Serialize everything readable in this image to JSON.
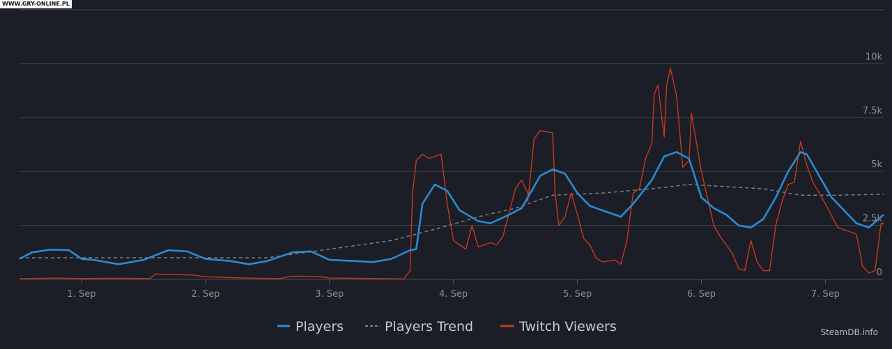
{
  "watermark": "WWW.GRY-ONLINE.PL",
  "credit": "SteamDB.info",
  "colors": {
    "players": "#2a8bd4",
    "trend": "#7a7f87",
    "twitch": "#c8381c",
    "grid": "#3b3f48",
    "text": "#8a8f98"
  },
  "chart_data": {
    "type": "line",
    "title": "",
    "xlabel": "",
    "ylabel": "",
    "xlim": [
      0.5,
      7.47
    ],
    "ylim": [
      0,
      12500
    ],
    "grid": true,
    "legend_position": "bottom-center",
    "x_ticks": [
      {
        "value": 1,
        "label": "1. Sep"
      },
      {
        "value": 2,
        "label": "2. Sep"
      },
      {
        "value": 3,
        "label": "3. Sep"
      },
      {
        "value": 4,
        "label": "4. Sep"
      },
      {
        "value": 5,
        "label": "5. Sep"
      },
      {
        "value": 6,
        "label": "6. Sep"
      },
      {
        "value": 7,
        "label": "7. Sep"
      }
    ],
    "y_ticks": [
      {
        "value": 0,
        "label": "0"
      },
      {
        "value": 2500,
        "label": "2.5k"
      },
      {
        "value": 5000,
        "label": "5k"
      },
      {
        "value": 7500,
        "label": "7.5k"
      },
      {
        "value": 10000,
        "label": "10k"
      }
    ],
    "series": [
      {
        "name": "Players",
        "style": "solid",
        "points": [
          [
            0.5,
            950
          ],
          [
            0.6,
            1250
          ],
          [
            0.75,
            1380
          ],
          [
            0.9,
            1350
          ],
          [
            1.0,
            950
          ],
          [
            1.1,
            900
          ],
          [
            1.3,
            700
          ],
          [
            1.5,
            900
          ],
          [
            1.7,
            1350
          ],
          [
            1.85,
            1300
          ],
          [
            2.0,
            950
          ],
          [
            2.2,
            850
          ],
          [
            2.35,
            700
          ],
          [
            2.5,
            850
          ],
          [
            2.7,
            1250
          ],
          [
            2.85,
            1300
          ],
          [
            3.0,
            900
          ],
          [
            3.2,
            850
          ],
          [
            3.35,
            800
          ],
          [
            3.5,
            950
          ],
          [
            3.65,
            1350
          ],
          [
            3.7,
            1400
          ],
          [
            3.75,
            3500
          ],
          [
            3.85,
            4400
          ],
          [
            3.95,
            4100
          ],
          [
            4.05,
            3200
          ],
          [
            4.2,
            2700
          ],
          [
            4.3,
            2600
          ],
          [
            4.45,
            3000
          ],
          [
            4.55,
            3300
          ],
          [
            4.7,
            4800
          ],
          [
            4.8,
            5100
          ],
          [
            4.9,
            4900
          ],
          [
            5.0,
            4000
          ],
          [
            5.1,
            3400
          ],
          [
            5.25,
            3100
          ],
          [
            5.35,
            2900
          ],
          [
            5.45,
            3500
          ],
          [
            5.6,
            4600
          ],
          [
            5.7,
            5700
          ],
          [
            5.8,
            5900
          ],
          [
            5.9,
            5600
          ],
          [
            6.0,
            3800
          ],
          [
            6.1,
            3300
          ],
          [
            6.2,
            3000
          ],
          [
            6.3,
            2500
          ],
          [
            6.4,
            2400
          ],
          [
            6.5,
            2800
          ],
          [
            6.6,
            3800
          ],
          [
            6.7,
            5000
          ],
          [
            6.8,
            5900
          ],
          [
            6.85,
            5800
          ],
          [
            6.95,
            4800
          ],
          [
            7.05,
            3800
          ],
          [
            7.15,
            3200
          ],
          [
            7.25,
            2600
          ],
          [
            7.35,
            2400
          ],
          [
            7.47,
            3000
          ]
        ]
      },
      {
        "name": "Players Trend",
        "style": "dashed",
        "points": [
          [
            0.5,
            1000
          ],
          [
            1.5,
            1000
          ],
          [
            2.5,
            1000
          ],
          [
            3.0,
            1400
          ],
          [
            3.5,
            1800
          ],
          [
            3.9,
            2400
          ],
          [
            4.2,
            2900
          ],
          [
            4.5,
            3300
          ],
          [
            4.8,
            3900
          ],
          [
            5.2,
            4000
          ],
          [
            5.6,
            4200
          ],
          [
            5.9,
            4400
          ],
          [
            6.2,
            4300
          ],
          [
            6.5,
            4200
          ],
          [
            6.8,
            3900
          ],
          [
            7.1,
            3900
          ],
          [
            7.47,
            3950
          ]
        ]
      },
      {
        "name": "Twitch Viewers",
        "style": "solid",
        "points": [
          [
            0.5,
            30
          ],
          [
            0.8,
            60
          ],
          [
            1.0,
            40
          ],
          [
            1.3,
            50
          ],
          [
            1.55,
            40
          ],
          [
            1.6,
            250
          ],
          [
            1.9,
            200
          ],
          [
            2.0,
            120
          ],
          [
            2.3,
            60
          ],
          [
            2.6,
            40
          ],
          [
            2.7,
            150
          ],
          [
            2.9,
            140
          ],
          [
            3.0,
            60
          ],
          [
            3.4,
            40
          ],
          [
            3.6,
            20
          ],
          [
            3.65,
            400
          ],
          [
            3.67,
            4000
          ],
          [
            3.7,
            5500
          ],
          [
            3.75,
            5800
          ],
          [
            3.8,
            5600
          ],
          [
            3.9,
            5800
          ],
          [
            3.95,
            3500
          ],
          [
            4.0,
            1800
          ],
          [
            4.05,
            1600
          ],
          [
            4.1,
            1400
          ],
          [
            4.15,
            2500
          ],
          [
            4.2,
            1500
          ],
          [
            4.3,
            1700
          ],
          [
            4.35,
            1600
          ],
          [
            4.4,
            2000
          ],
          [
            4.5,
            4200
          ],
          [
            4.55,
            4600
          ],
          [
            4.6,
            4000
          ],
          [
            4.6,
            3600
          ],
          [
            4.65,
            6500
          ],
          [
            4.7,
            6900
          ],
          [
            4.8,
            6800
          ],
          [
            4.82,
            4000
          ],
          [
            4.85,
            2500
          ],
          [
            4.9,
            2900
          ],
          [
            4.95,
            4000
          ],
          [
            5.0,
            3000
          ],
          [
            5.05,
            1900
          ],
          [
            5.1,
            1600
          ],
          [
            5.15,
            1000
          ],
          [
            5.2,
            800
          ],
          [
            5.3,
            900
          ],
          [
            5.35,
            700
          ],
          [
            5.4,
            1800
          ],
          [
            5.45,
            4000
          ],
          [
            5.5,
            4200
          ],
          [
            5.55,
            5600
          ],
          [
            5.6,
            6300
          ],
          [
            5.62,
            8600
          ],
          [
            5.65,
            9000
          ],
          [
            5.7,
            6600
          ],
          [
            5.72,
            9000
          ],
          [
            5.75,
            9800
          ],
          [
            5.8,
            8500
          ],
          [
            5.85,
            5200
          ],
          [
            5.9,
            5500
          ],
          [
            5.92,
            7700
          ],
          [
            6.0,
            5000
          ],
          [
            6.1,
            2500
          ],
          [
            6.15,
            2000
          ],
          [
            6.2,
            1600
          ],
          [
            6.25,
            1200
          ],
          [
            6.3,
            500
          ],
          [
            6.35,
            400
          ],
          [
            6.4,
            1800
          ],
          [
            6.45,
            800
          ],
          [
            6.5,
            400
          ],
          [
            6.55,
            400
          ],
          [
            6.6,
            2500
          ],
          [
            6.65,
            3600
          ],
          [
            6.7,
            4400
          ],
          [
            6.75,
            4500
          ],
          [
            6.8,
            6400
          ],
          [
            6.85,
            5300
          ],
          [
            6.9,
            4500
          ],
          [
            7.0,
            3500
          ],
          [
            7.1,
            2400
          ],
          [
            7.2,
            2200
          ],
          [
            7.25,
            2100
          ],
          [
            7.3,
            600
          ],
          [
            7.35,
            300
          ],
          [
            7.4,
            400
          ],
          [
            7.45,
            2600
          ],
          [
            7.47,
            2600
          ]
        ]
      }
    ]
  }
}
